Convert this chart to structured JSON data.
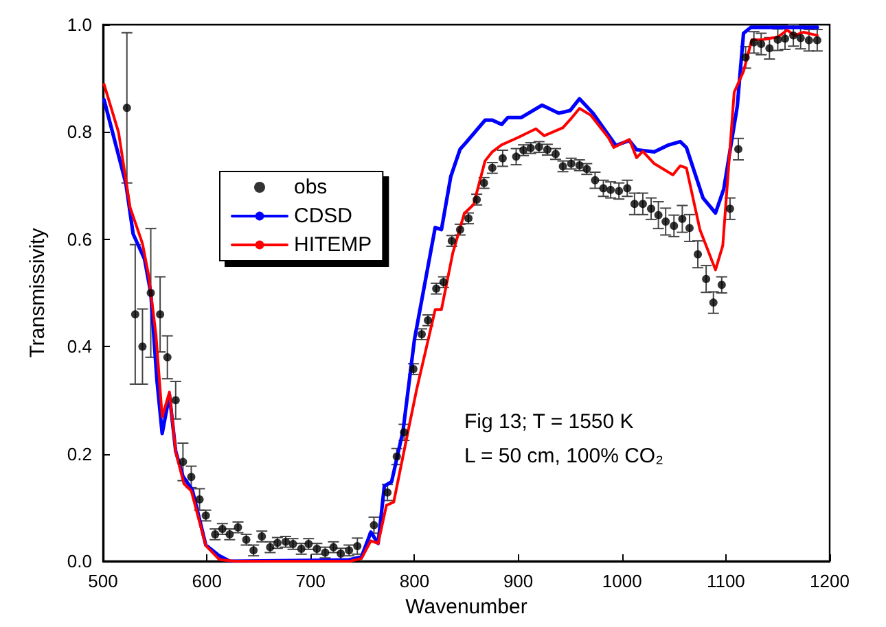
{
  "chart_data": {
    "type": "line",
    "xlabel": "Wavenumber",
    "ylabel": "Transmissivity",
    "annotations": [
      "Fig 13; T = 1550 K",
      "L = 50 cm, 100% CO₂"
    ],
    "xlim": [
      500,
      1200
    ],
    "xticks": [
      500,
      600,
      700,
      800,
      900,
      1000,
      1100,
      1200
    ],
    "ylim": [
      0,
      1
    ],
    "yticks": [
      {
        "value": 0,
        "label": "0.0"
      },
      {
        "value": 0.2,
        "label": "0.2"
      },
      {
        "value": 0.4,
        "label": "0.4"
      },
      {
        "value": 0.6,
        "label": "0.6"
      },
      {
        "value": 0.8,
        "label": "0.8"
      },
      {
        "value": 1,
        "label": "1.0"
      }
    ],
    "grid": false,
    "legend": "left",
    "series": [
      {
        "name": "obs",
        "type": "scatter",
        "marker": "circle",
        "color": "#000000",
        "x": [
          523,
          531,
          538,
          546,
          555,
          562,
          570,
          577,
          585,
          593,
          599,
          608,
          615,
          622,
          630,
          638,
          645,
          653,
          661,
          668,
          676,
          683,
          691,
          698,
          706,
          714,
          722,
          729,
          737,
          745,
          761,
          774,
          783,
          790,
          799,
          807,
          813,
          821,
          828,
          836,
          844,
          852,
          860,
          867,
          875,
          885,
          898,
          905,
          912,
          920,
          928,
          936,
          943,
          951,
          959,
          966,
          974,
          982,
          989,
          997,
          1005,
          1012,
          1020,
          1028,
          1035,
          1042,
          1050,
          1058,
          1065,
          1073,
          1081,
          1088,
          1096,
          1104,
          1112,
          1119,
          1127,
          1134,
          1142,
          1150,
          1157,
          1165,
          1172,
          1180,
          1188
        ],
        "values": [
          0.845,
          0.46,
          0.4,
          0.5,
          0.46,
          0.38,
          0.3,
          0.185,
          0.157,
          0.115,
          0.085,
          0.05,
          0.06,
          0.05,
          0.063,
          0.04,
          0.02,
          0.046,
          0.026,
          0.034,
          0.036,
          0.032,
          0.023,
          0.032,
          0.023,
          0.016,
          0.026,
          0.014,
          0.02,
          0.028,
          0.067,
          0.128,
          0.195,
          0.24,
          0.358,
          0.423,
          0.449,
          0.508,
          0.52,
          0.597,
          0.618,
          0.639,
          0.674,
          0.705,
          0.733,
          0.751,
          0.754,
          0.766,
          0.77,
          0.772,
          0.767,
          0.759,
          0.736,
          0.741,
          0.738,
          0.731,
          0.71,
          0.695,
          0.692,
          0.69,
          0.695,
          0.666,
          0.666,
          0.657,
          0.645,
          0.633,
          0.625,
          0.638,
          0.621,
          0.572,
          0.526,
          0.482,
          0.515,
          0.657,
          0.768,
          0.939,
          0.967,
          0.964,
          0.956,
          0.972,
          0.974,
          0.98,
          0.975,
          0.971,
          0.971
        ],
        "errors": [
          0.14,
          0.13,
          0.07,
          0.12,
          0.07,
          0.04,
          0.035,
          0.035,
          0.02,
          0.02,
          0.01,
          0.01,
          0.01,
          0.01,
          0.01,
          0.01,
          0.01,
          0.01,
          0.01,
          0.01,
          0.01,
          0.01,
          0.01,
          0.01,
          0.01,
          0.01,
          0.01,
          0.01,
          0.01,
          0.015,
          0.015,
          0.015,
          0.015,
          0.015,
          0.01,
          0.01,
          0.01,
          0.01,
          0.01,
          0.01,
          0.01,
          0.01,
          0.01,
          0.01,
          0.01,
          0.015,
          0.015,
          0.01,
          0.01,
          0.01,
          0.01,
          0.01,
          0.01,
          0.01,
          0.01,
          0.01,
          0.015,
          0.015,
          0.015,
          0.015,
          0.015,
          0.02,
          0.02,
          0.02,
          0.025,
          0.025,
          0.02,
          0.025,
          0.025,
          0.025,
          0.025,
          0.02,
          0.015,
          0.02,
          0.02,
          0.02,
          0.02,
          0.02,
          0.02,
          0.02,
          0.02,
          0.02,
          0.02,
          0.02,
          0.02
        ]
      },
      {
        "name": "CDSD",
        "type": "line",
        "marker": "none",
        "color": "#0000ff",
        "x": [
          501,
          522,
          529,
          540,
          546,
          552,
          557,
          564,
          570,
          577,
          586,
          599,
          612,
          622,
          736,
          749,
          758,
          765,
          771,
          778,
          789,
          800,
          820,
          826,
          835,
          844,
          850,
          868,
          875,
          884,
          890,
          903,
          923,
          939,
          950,
          959,
          972,
          994,
          1007,
          1014,
          1031,
          1045,
          1056,
          1062,
          1078,
          1090,
          1098,
          1111,
          1117,
          1124,
          1188
        ],
        "values": [
          0.86,
          0.704,
          0.61,
          0.563,
          0.5,
          0.336,
          0.238,
          0.31,
          0.205,
          0.158,
          0.133,
          0.03,
          0.01,
          0,
          0.002,
          0.008,
          0.054,
          0.033,
          0.14,
          0.148,
          0.243,
          0.413,
          0.622,
          0.618,
          0.717,
          0.768,
          0.781,
          0.822,
          0.822,
          0.814,
          0.827,
          0.827,
          0.85,
          0.835,
          0.84,
          0.862,
          0.835,
          0.775,
          0.784,
          0.767,
          0.763,
          0.776,
          0.782,
          0.771,
          0.677,
          0.649,
          0.694,
          0.848,
          0.984,
          0.995,
          0.995
        ]
      },
      {
        "name": "HITEMP",
        "type": "line",
        "marker": "none",
        "color": "#ff0000",
        "x": [
          501,
          515,
          526,
          538,
          544,
          551,
          557,
          564,
          570,
          578,
          585,
          599,
          612,
          626,
          738,
          749,
          758,
          765,
          773,
          780,
          793,
          802,
          820,
          826,
          837,
          848,
          857,
          868,
          875,
          884,
          899,
          917,
          925,
          943,
          950,
          959,
          970,
          987,
          992,
          1007,
          1014,
          1020,
          1031,
          1049,
          1056,
          1062,
          1075,
          1090,
          1097,
          1108,
          1117,
          1125,
          1135,
          1150,
          1159,
          1166,
          1175,
          1188
        ],
        "values": [
          0.889,
          0.799,
          0.66,
          0.592,
          0.532,
          0.422,
          0.269,
          0.315,
          0.204,
          0.144,
          0.131,
          0.029,
          0.003,
          0,
          0,
          0.005,
          0.038,
          0.033,
          0.104,
          0.11,
          0.234,
          0.319,
          0.469,
          0.469,
          0.575,
          0.648,
          0.665,
          0.746,
          0.763,
          0.776,
          0.789,
          0.806,
          0.793,
          0.808,
          0.823,
          0.844,
          0.831,
          0.789,
          0.771,
          0.786,
          0.752,
          0.764,
          0.741,
          0.72,
          0.737,
          0.733,
          0.618,
          0.543,
          0.588,
          0.874,
          0.913,
          0.972,
          0.972,
          0.977,
          0.99,
          0.98,
          0.986,
          0.98
        ]
      }
    ]
  }
}
